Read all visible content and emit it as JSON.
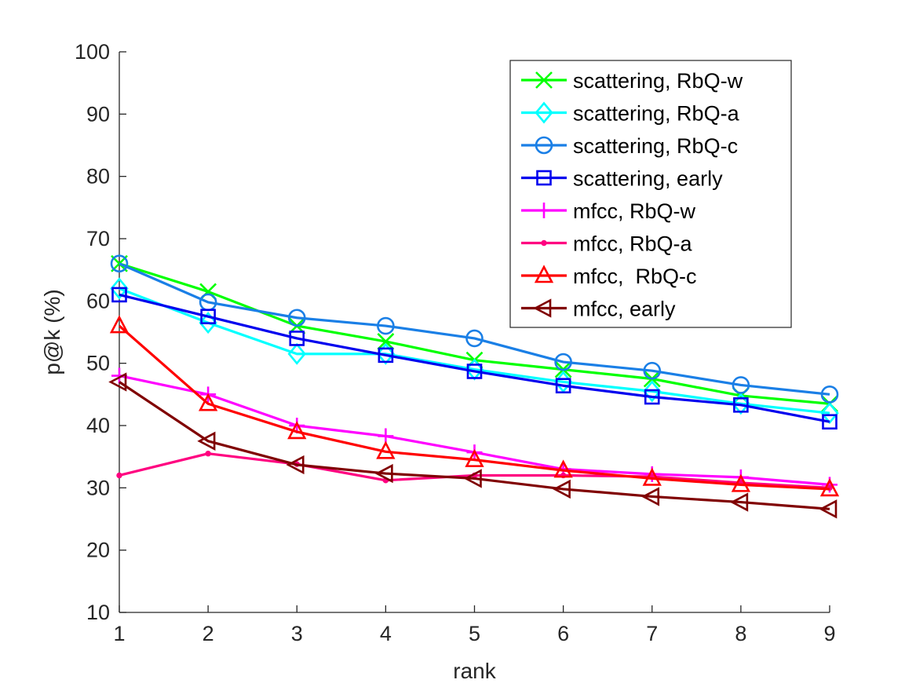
{
  "chart_data": {
    "type": "line",
    "title": "",
    "xlabel": "rank",
    "ylabel": "p@k (%)",
    "xlim": [
      1,
      9
    ],
    "ylim": [
      10,
      100
    ],
    "xticks": [
      1,
      2,
      3,
      4,
      5,
      6,
      7,
      8,
      9
    ],
    "yticks": [
      10,
      20,
      30,
      40,
      50,
      60,
      70,
      80,
      90,
      100
    ],
    "grid": false,
    "legend_position": "top-right",
    "x": [
      1,
      2,
      3,
      4,
      5,
      6,
      7,
      8,
      9
    ],
    "series": [
      {
        "name": "scattering, RbQ-w",
        "color": "#00ff00",
        "marker": "x",
        "values": [
          66,
          61.5,
          56,
          53.5,
          50.5,
          49,
          47.5,
          44.8,
          43.5
        ]
      },
      {
        "name": "scattering, RbQ-a",
        "color": "#00ffff",
        "marker": "diamond",
        "values": [
          62,
          56.5,
          51.5,
          51.5,
          49,
          47,
          45.5,
          43.5,
          42
        ]
      },
      {
        "name": "scattering, RbQ-c",
        "color": "#1a7fe6",
        "marker": "circle",
        "values": [
          66,
          59.8,
          57.3,
          56,
          54,
          50.2,
          48.8,
          46.5,
          45
        ]
      },
      {
        "name": "scattering, early",
        "color": "#0000ee",
        "marker": "square",
        "values": [
          61,
          57.5,
          54,
          51.3,
          48.7,
          46.4,
          44.6,
          43.3,
          40.6
        ]
      },
      {
        "name": "mfcc, RbQ-w",
        "color": "#ff00ff",
        "marker": "plus",
        "values": [
          48,
          45,
          40,
          38.3,
          35.7,
          33,
          32.2,
          31.7,
          30.5
        ]
      },
      {
        "name": "mfcc, RbQ-a",
        "color": "#ff0080",
        "marker": "dot",
        "values": [
          32,
          35.5,
          33.8,
          31.2,
          32,
          32,
          31.8,
          30.8,
          30
        ]
      },
      {
        "name": "mfcc,  RbQ-c",
        "color": "#ff0000",
        "marker": "triangle-up",
        "values": [
          56,
          43.5,
          39,
          35.8,
          34.5,
          32.8,
          31.5,
          30.5,
          29.8
        ]
      },
      {
        "name": "mfcc, early",
        "color": "#800000",
        "marker": "triangle-left",
        "values": [
          47,
          37.5,
          33.7,
          32.3,
          31.5,
          29.8,
          28.6,
          27.7,
          26.6
        ]
      }
    ]
  }
}
